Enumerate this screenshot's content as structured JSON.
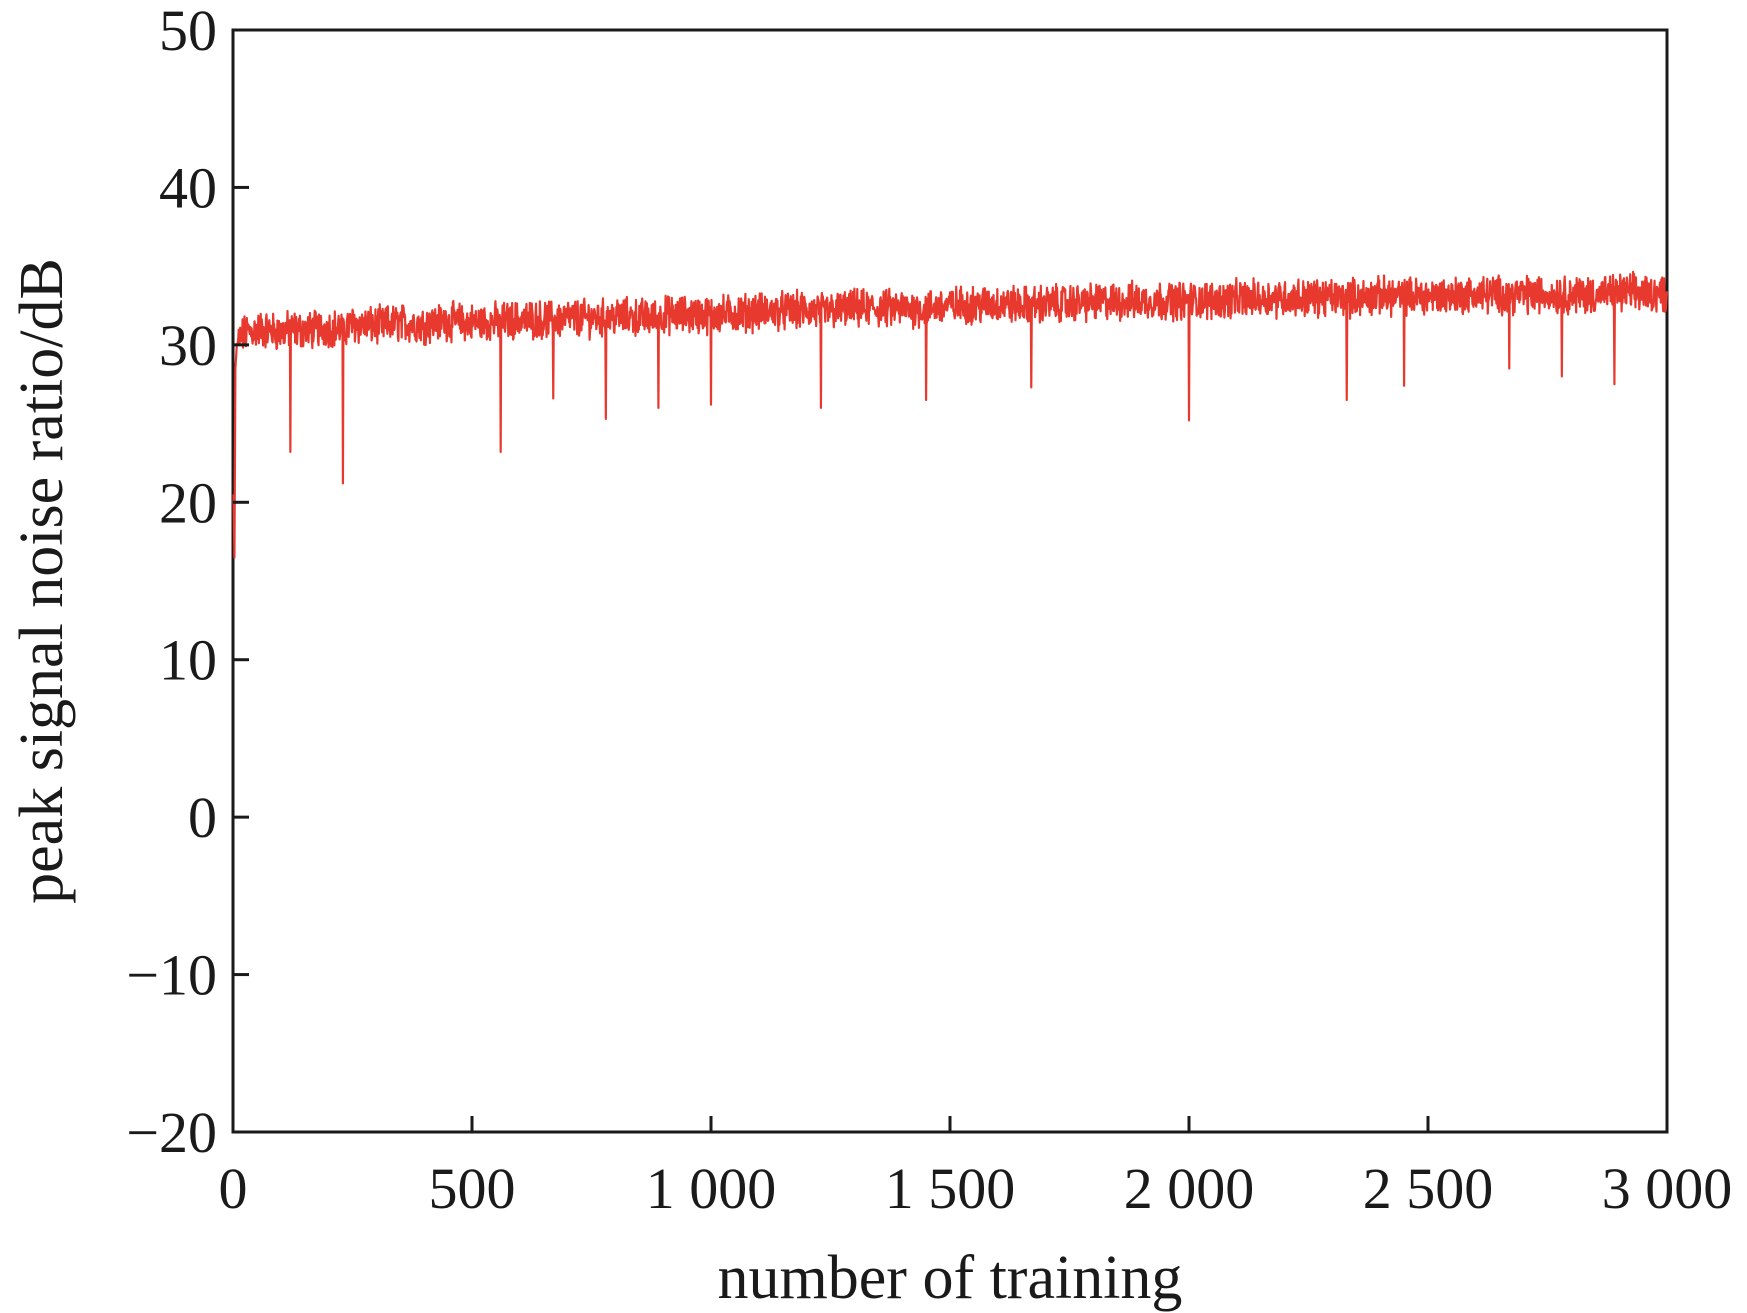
{
  "chart_data": {
    "type": "line",
    "title": "",
    "xlabel": "number of training",
    "ylabel": "peak signal noise ratio/dB",
    "xlim": [
      0,
      3000
    ],
    "ylim": [
      -20,
      50
    ],
    "x_ticks": [
      0,
      500,
      1000,
      1500,
      2000,
      2500,
      3000
    ],
    "x_tick_labels": [
      "0",
      "500",
      "1 000",
      "1 500",
      "2 000",
      "2 500",
      "3 000"
    ],
    "y_ticks": [
      -20,
      -10,
      0,
      10,
      20,
      30,
      40,
      50
    ],
    "y_tick_labels": [
      "−20",
      "−10",
      "0",
      "10",
      "20",
      "30",
      "40",
      "50"
    ],
    "grid": false,
    "legend": "none",
    "series": [
      {
        "color": "#e8392e",
        "x": [
          1,
          3,
          5,
          8,
          12,
          20,
          30,
          45,
          60,
          80,
          100,
          120,
          150,
          200,
          230,
          250,
          300,
          350,
          400,
          450,
          500,
          560,
          600,
          670,
          700,
          780,
          800,
          890,
          900,
          1000,
          1050,
          1100,
          1200,
          1230,
          1300,
          1400,
          1450,
          1500,
          1600,
          1670,
          1700,
          1800,
          1900,
          2000,
          2100,
          2200,
          2300,
          2330,
          2400,
          2450,
          2500,
          2600,
          2670,
          2700,
          2780,
          2800,
          2890,
          2900,
          3000
        ],
        "y": [
          20.5,
          16.5,
          28.5,
          30.0,
          30.3,
          30.6,
          30.8,
          30.9,
          31.0,
          30.9,
          30.8,
          31.0,
          30.9,
          31.1,
          31.0,
          31.3,
          31.2,
          31.4,
          31.3,
          31.5,
          31.4,
          31.5,
          31.6,
          31.6,
          31.7,
          31.7,
          31.8,
          31.7,
          31.9,
          31.9,
          32.0,
          32.1,
          32.2,
          32.1,
          32.3,
          32.3,
          32.3,
          32.5,
          32.6,
          32.5,
          32.6,
          32.7,
          32.8,
          32.8,
          32.9,
          33.0,
          33.0,
          33.0,
          33.1,
          33.1,
          33.1,
          33.2,
          33.2,
          33.2,
          33.2,
          33.2,
          33.2,
          33.3,
          33.3
        ],
        "dips": [
          {
            "x": 120,
            "y": 23.2
          },
          {
            "x": 230,
            "y": 21.2
          },
          {
            "x": 560,
            "y": 23.2
          },
          {
            "x": 670,
            "y": 26.6
          },
          {
            "x": 780,
            "y": 25.3
          },
          {
            "x": 890,
            "y": 26.0
          },
          {
            "x": 1000,
            "y": 26.2
          },
          {
            "x": 1230,
            "y": 26.0
          },
          {
            "x": 1450,
            "y": 26.5
          },
          {
            "x": 1670,
            "y": 27.3
          },
          {
            "x": 2000,
            "y": 25.2
          },
          {
            "x": 2330,
            "y": 26.5
          },
          {
            "x": 2450,
            "y": 27.4
          },
          {
            "x": 2670,
            "y": 28.5
          },
          {
            "x": 2780,
            "y": 28.0
          },
          {
            "x": 2890,
            "y": 27.5
          }
        ]
      }
    ]
  }
}
